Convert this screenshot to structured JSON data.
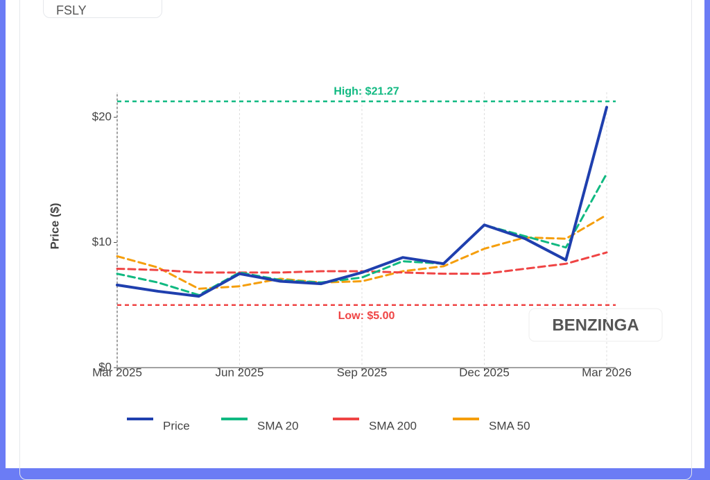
{
  "header": {
    "ticker": "FSLY"
  },
  "watermark": "BENZINGA",
  "chart_data": {
    "type": "line",
    "y_label": "Price ($)",
    "x": [
      "2025-03",
      "2025-04",
      "2025-05",
      "2025-06",
      "2025-07",
      "2025-08",
      "2025-09",
      "2025-10",
      "2025-11",
      "2025-12",
      "2026-01",
      "2026-02",
      "2026-03"
    ],
    "xlim": [
      "2025-03",
      "2026-03"
    ],
    "xticks": [
      {
        "value": "2025-03",
        "label": "Mar 2025"
      },
      {
        "value": "2025-06",
        "label": "Jun 2025"
      },
      {
        "value": "2025-09",
        "label": "Sep 2025"
      },
      {
        "value": "2025-12",
        "label": "Dec 2025"
      },
      {
        "value": "2026-03",
        "label": "Mar 2026"
      }
    ],
    "ylim": [
      0,
      22
    ],
    "yticks": [
      {
        "value": 0,
        "label": "$0"
      },
      {
        "value": 10,
        "label": "$10"
      },
      {
        "value": 20,
        "label": "$20"
      }
    ],
    "grid": true,
    "series": [
      {
        "name": "Price",
        "color": "#1f3fae",
        "width": 4,
        "dashed": false,
        "values": [
          6.6,
          6.1,
          5.7,
          7.5,
          6.9,
          6.7,
          7.6,
          8.8,
          8.3,
          11.4,
          10.3,
          8.6,
          20.8
        ]
      },
      {
        "name": "SMA 20",
        "color": "#10b981",
        "width": 3,
        "dashed": true,
        "values": [
          7.5,
          6.8,
          5.8,
          7.6,
          7.0,
          6.8,
          7.2,
          8.5,
          8.3,
          11.4,
          10.5,
          9.6,
          15.5
        ]
      },
      {
        "name": "SMA 200",
        "color": "#ef4444",
        "width": 3,
        "dashed": true,
        "values": [
          7.9,
          7.8,
          7.6,
          7.6,
          7.6,
          7.7,
          7.7,
          7.6,
          7.5,
          7.5,
          7.9,
          8.3,
          9.2
        ]
      },
      {
        "name": "SMA 50",
        "color": "#f59e0b",
        "width": 3,
        "dashed": true,
        "values": [
          8.9,
          8.0,
          6.3,
          6.5,
          7.1,
          6.8,
          6.9,
          7.7,
          8.1,
          9.5,
          10.4,
          10.3,
          12.2
        ]
      }
    ],
    "hlines": [
      {
        "value": 21.27,
        "label": "High: $21.27",
        "color": "#10b981"
      },
      {
        "value": 5.0,
        "label": "Low: $5.00",
        "color": "#ef4444"
      }
    ]
  }
}
